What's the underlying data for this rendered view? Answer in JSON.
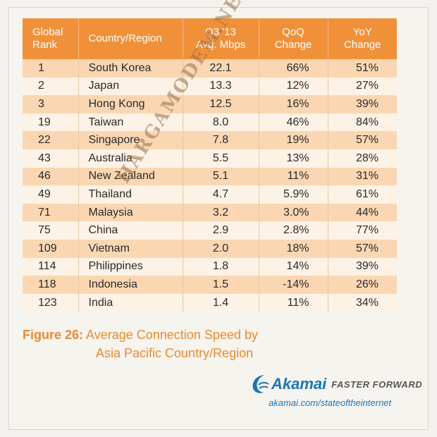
{
  "chart_data": {
    "type": "table",
    "columns": [
      "Global Rank",
      "Country/Region",
      "Q3 '13 Avg. Mbps",
      "QoQ Change",
      "YoY Change"
    ],
    "rows": [
      [
        "1",
        "South Korea",
        "22.1",
        "66%",
        "51%"
      ],
      [
        "2",
        "Japan",
        "13.3",
        "12%",
        "27%"
      ],
      [
        "3",
        "Hong Kong",
        "12.5",
        "16%",
        "39%"
      ],
      [
        "19",
        "Taiwan",
        "8.0",
        "46%",
        "84%"
      ],
      [
        "22",
        "Singapore",
        "7.8",
        "19%",
        "57%"
      ],
      [
        "43",
        "Australia",
        "5.5",
        "13%",
        "28%"
      ],
      [
        "46",
        "New Zealand",
        "5.1",
        "11%",
        "31%"
      ],
      [
        "49",
        "Thailand",
        "4.7",
        "5.9%",
        "61%"
      ],
      [
        "71",
        "Malaysia",
        "3.2",
        "3.0%",
        "44%"
      ],
      [
        "75",
        "China",
        "2.9",
        "2.8%",
        "77%"
      ],
      [
        "109",
        "Vietnam",
        "2.0",
        "18%",
        "57%"
      ],
      [
        "114",
        "Philippines",
        "1.8",
        "14%",
        "39%"
      ],
      [
        "118",
        "Indonesia",
        "1.5",
        "-14%",
        "26%"
      ],
      [
        "123",
        "India",
        "1.4",
        "11%",
        "34%"
      ]
    ],
    "header_color": "#f0913a",
    "row_colors": [
      "#fad7b2",
      "#fdf2e6"
    ]
  },
  "headers": {
    "rank": [
      "Global",
      "Rank"
    ],
    "country": "Country/Region",
    "speed": [
      "Q3 '13",
      "Avg. Mbps"
    ],
    "qoq": [
      "QoQ",
      "Change"
    ],
    "yoy": [
      "YoY",
      "Change"
    ]
  },
  "caption": {
    "label": "Figure 26:",
    "line1": "Average Connection Speed by",
    "line2": "Asia Pacific Country/Region"
  },
  "watermark": "HARGAMODEM.NET",
  "branding": {
    "brand": "Akamai",
    "tagline": "FASTER FORWARD",
    "url": "akamai.com/stateoftheinternet",
    "brand_color": "#1a76b8"
  }
}
